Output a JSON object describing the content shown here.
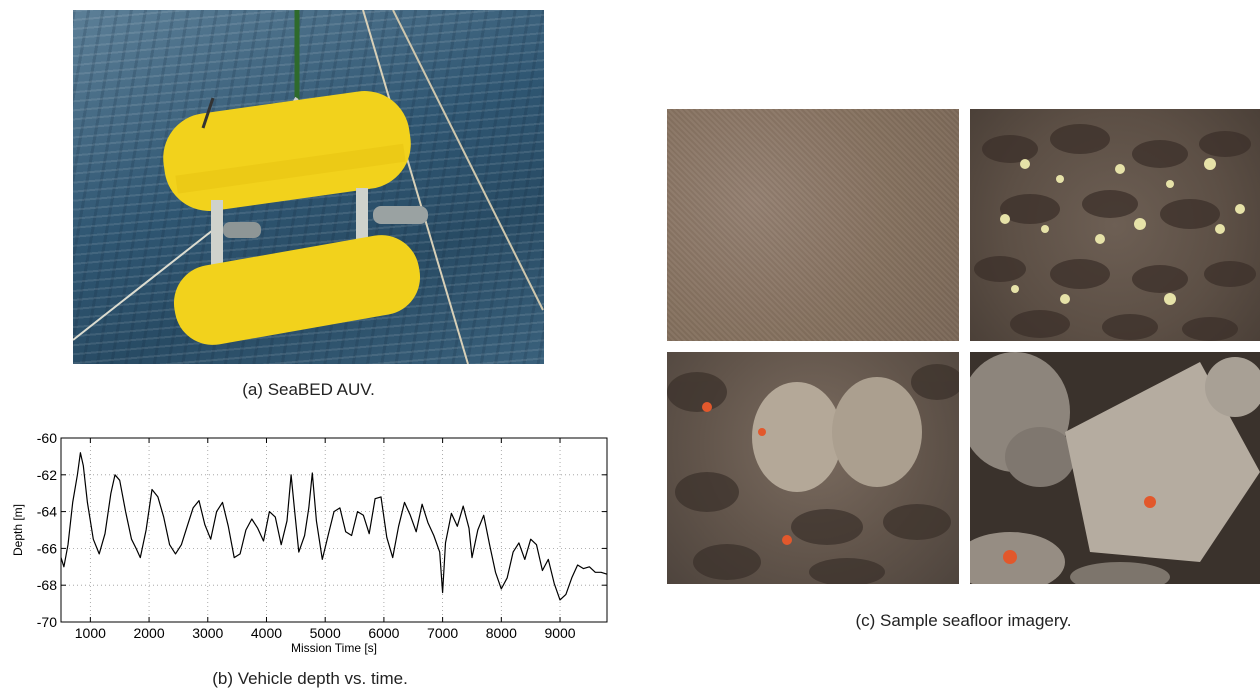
{
  "figure": {
    "caption_a": "(a)  SeaBED AUV.",
    "caption_b": "(b)  Vehicle depth vs. time.",
    "caption_c": "(c)  Sample seafloor imagery."
  },
  "chart_data": {
    "type": "line",
    "title": "",
    "xlabel": "Mission Time [s]",
    "ylabel": "Depth [m]",
    "xlim": [
      500,
      9800
    ],
    "ylim": [
      -70,
      -60
    ],
    "xticks": [
      1000,
      2000,
      3000,
      4000,
      5000,
      6000,
      7000,
      8000,
      9000
    ],
    "yticks": [
      -60,
      -62,
      -64,
      -66,
      -68,
      -70
    ],
    "grid": true,
    "series": [
      {
        "x": [
          500,
          550,
          620,
          700,
          780,
          830,
          880,
          950,
          1050,
          1150,
          1250,
          1350,
          1420,
          1500,
          1600,
          1700,
          1780,
          1850,
          1950,
          2050,
          2150,
          2250,
          2350,
          2450,
          2550,
          2650,
          2750,
          2850,
          2950,
          3050,
          3150,
          3250,
          3350,
          3450,
          3550,
          3650,
          3750,
          3850,
          3950,
          4050,
          4150,
          4250,
          4350,
          4420,
          4480,
          4550,
          4650,
          4720,
          4780,
          4850,
          4950,
          5050,
          5150,
          5250,
          5350,
          5450,
          5550,
          5650,
          5750,
          5850,
          5950,
          6050,
          6150,
          6250,
          6350,
          6450,
          6550,
          6650,
          6750,
          6850,
          6950,
          7000,
          7050,
          7150,
          7250,
          7350,
          7450,
          7500,
          7600,
          7700,
          7800,
          7900,
          8000,
          8100,
          8200,
          8300,
          8400,
          8500,
          8600,
          8700,
          8800,
          8900,
          9000,
          9100,
          9200,
          9300,
          9400,
          9500,
          9600,
          9700,
          9800
        ],
        "y": [
          -66.5,
          -67.0,
          -65.8,
          -63.5,
          -62.0,
          -60.8,
          -61.5,
          -63.5,
          -65.5,
          -66.3,
          -65.2,
          -63.0,
          -62.0,
          -62.3,
          -64.0,
          -65.5,
          -66.0,
          -66.5,
          -65.0,
          -62.8,
          -63.2,
          -64.3,
          -65.8,
          -66.3,
          -65.8,
          -64.8,
          -63.8,
          -63.4,
          -64.7,
          -65.5,
          -64.0,
          -63.5,
          -64.8,
          -66.5,
          -66.3,
          -65.0,
          -64.4,
          -64.9,
          -65.6,
          -64.0,
          -64.3,
          -65.8,
          -64.5,
          -62.0,
          -64.0,
          -66.2,
          -65.3,
          -63.8,
          -61.9,
          -64.5,
          -66.6,
          -65.3,
          -64.0,
          -63.8,
          -65.1,
          -65.3,
          -64.0,
          -64.2,
          -65.2,
          -63.3,
          -63.2,
          -65.4,
          -66.5,
          -64.8,
          -63.5,
          -64.2,
          -65.1,
          -63.6,
          -64.6,
          -65.3,
          -66.2,
          -68.4,
          -65.7,
          -64.1,
          -64.8,
          -63.7,
          -64.9,
          -66.5,
          -65.0,
          -64.2,
          -65.8,
          -67.3,
          -68.2,
          -67.6,
          -66.2,
          -65.7,
          -66.6,
          -65.5,
          -65.8,
          -67.2,
          -66.6,
          -67.9,
          -68.8,
          -68.5,
          -67.6,
          -66.9,
          -67.1,
          -67.0,
          -67.3,
          -67.3,
          -67.4
        ]
      }
    ]
  }
}
